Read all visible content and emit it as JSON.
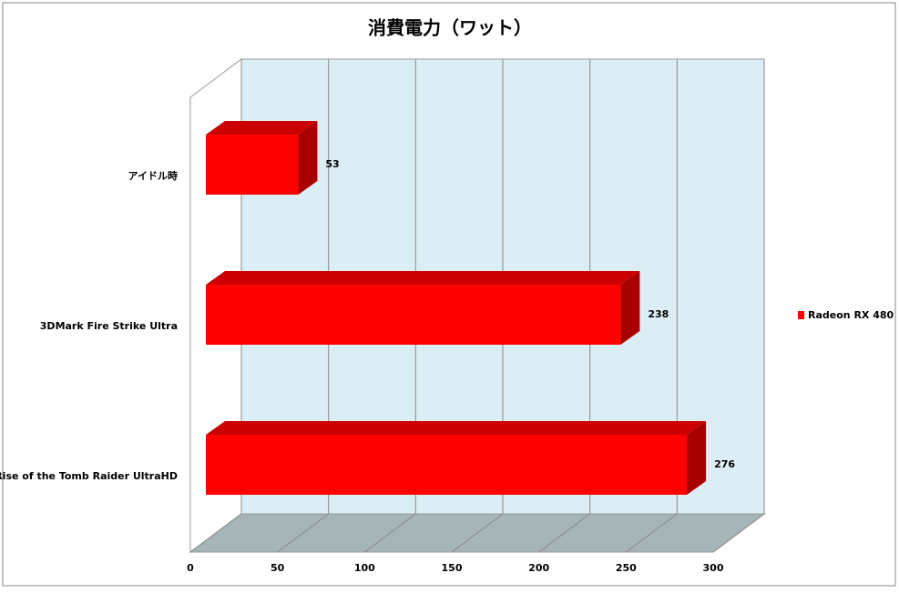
{
  "chart_data": {
    "type": "bar",
    "orientation": "horizontal",
    "title": "消費電力（ワット）",
    "categories": [
      "アイドル時",
      "3DMark Fire Strike Ultra",
      "Rise of the Tomb Raider UltraHD"
    ],
    "series": [
      {
        "name": "Radeon RX 480",
        "color": "#ff0000",
        "values": [
          53,
          238,
          276
        ]
      }
    ],
    "xlim": [
      0,
      300
    ],
    "xticks": [
      0,
      50,
      100,
      150,
      200,
      250,
      300
    ],
    "grid": true,
    "legend": "right"
  }
}
